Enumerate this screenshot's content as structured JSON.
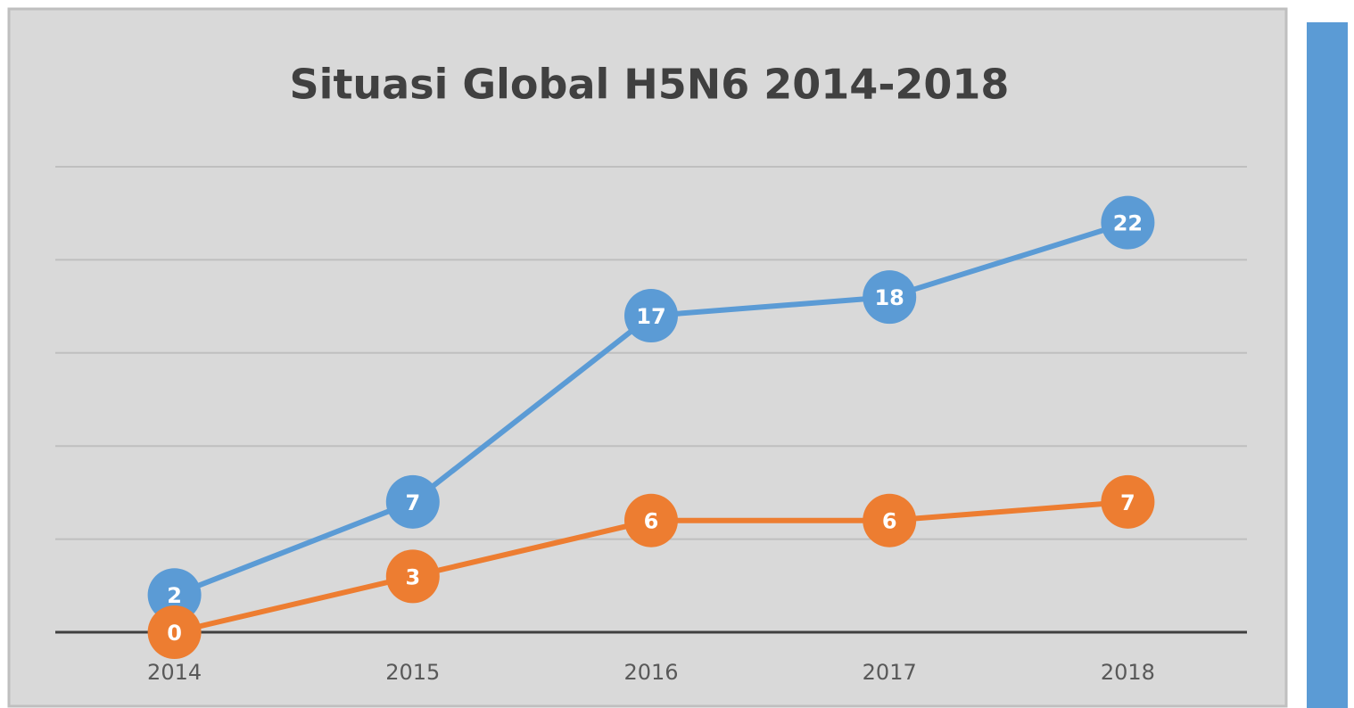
{
  "chart_data": {
    "type": "line",
    "title": "Situasi Global H5N6 2014-2018",
    "categories": [
      "2014",
      "2015",
      "2016",
      "2017",
      "2018"
    ],
    "series": [
      {
        "color": "#5b9bd5",
        "values": [
          2,
          7,
          17,
          18,
          22
        ]
      },
      {
        "color": "#ed7d31",
        "values": [
          0,
          3,
          6,
          6,
          7
        ]
      }
    ],
    "ylim": [
      0,
      25
    ],
    "yticks": [
      0,
      5,
      10,
      15,
      20,
      25
    ],
    "grid": true
  }
}
